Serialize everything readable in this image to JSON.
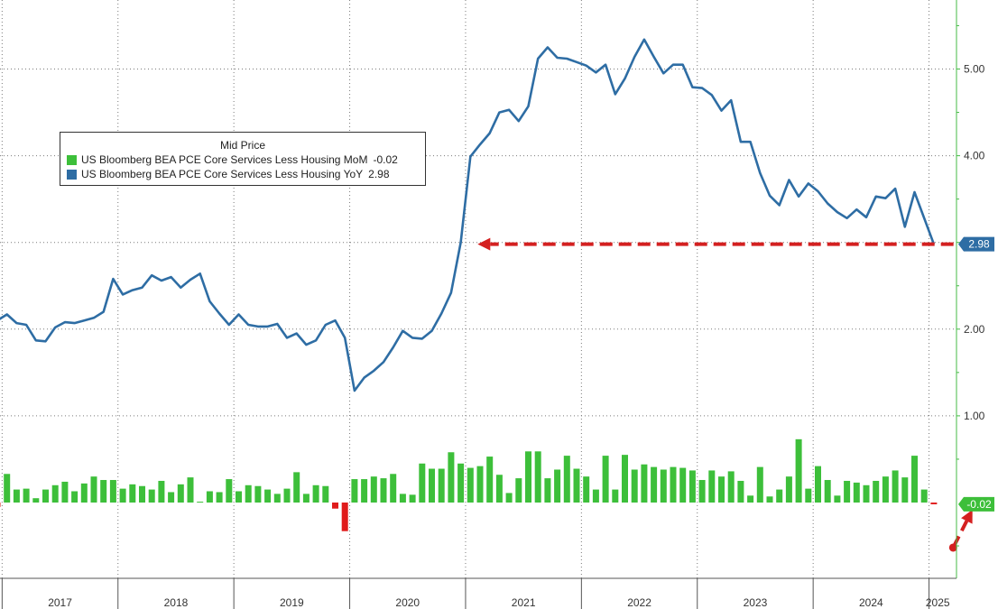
{
  "chart_data": {
    "type": "bar+line",
    "legend_title": "Mid Price",
    "x_tick_labels": [
      "2017",
      "2018",
      "2019",
      "2020",
      "2021",
      "2022",
      "2023",
      "2024",
      "2025"
    ],
    "y_tick_labels": [
      "1.00",
      "2.00",
      "3.00",
      "4.00",
      "5.00"
    ],
    "ylim": [
      -0.9,
      5.8
    ],
    "grid": true,
    "legend_position": "top-left",
    "colors": {
      "bars_positive": "#3dbf3a",
      "bars_negative": "#e01b1b",
      "line": "#2e6da4",
      "axis": "#44bb44",
      "annotation": "#d42020"
    },
    "series": [
      {
        "name": "US Bloomberg BEA PCE Core Services Less Housing YoY",
        "kind": "line",
        "last_value": "2.98",
        "start": "2016-12",
        "values": [
          2.1,
          2.17,
          2.07,
          2.05,
          1.87,
          1.86,
          2.02,
          2.08,
          2.07,
          2.1,
          2.13,
          2.2,
          2.58,
          2.4,
          2.45,
          2.48,
          2.62,
          2.56,
          2.6,
          2.48,
          2.57,
          2.64,
          2.32,
          2.18,
          2.05,
          2.17,
          2.05,
          2.03,
          2.03,
          2.06,
          1.9,
          1.95,
          1.82,
          1.87,
          2.05,
          2.1,
          1.9,
          1.29,
          1.44,
          1.52,
          1.62,
          1.79,
          1.98,
          1.9,
          1.89,
          1.98,
          2.18,
          2.42,
          3.0,
          3.99,
          4.13,
          4.26,
          4.5,
          4.53,
          4.4,
          4.57,
          5.12,
          5.25,
          5.13,
          5.12,
          5.08,
          5.04,
          4.96,
          5.05,
          4.71,
          4.89,
          5.14,
          5.34,
          5.14,
          4.95,
          5.05,
          5.05,
          4.79,
          4.78,
          4.7,
          4.52,
          4.64,
          4.16,
          4.16,
          3.8,
          3.54,
          3.43,
          3.72,
          3.53,
          3.68,
          3.59,
          3.45,
          3.35,
          3.28,
          3.38,
          3.29,
          3.53,
          3.51,
          3.62,
          3.18,
          3.58,
          3.28,
          2.98
        ]
      },
      {
        "name": "US Bloomberg BEA PCE Core Services Less Housing MoM",
        "kind": "bar",
        "last_value": "-0.02",
        "start": "2016-12",
        "values": [
          -0.05,
          0.33,
          0.15,
          0.16,
          0.05,
          0.15,
          0.2,
          0.24,
          0.13,
          0.22,
          0.3,
          0.26,
          0.26,
          0.16,
          0.21,
          0.19,
          0.15,
          0.25,
          0.12,
          0.21,
          0.29,
          0.01,
          0.13,
          0.12,
          0.27,
          0.13,
          0.2,
          0.19,
          0.15,
          0.1,
          0.16,
          0.35,
          0.1,
          0.2,
          0.19,
          -0.07,
          -0.33,
          0.27,
          0.27,
          0.3,
          0.28,
          0.33,
          0.1,
          0.09,
          0.45,
          0.39,
          0.39,
          0.58,
          0.45,
          0.4,
          0.42,
          0.53,
          0.32,
          0.11,
          0.28,
          0.59,
          0.59,
          0.28,
          0.38,
          0.54,
          0.39,
          0.3,
          0.15,
          0.54,
          0.15,
          0.55,
          0.38,
          0.44,
          0.41,
          0.38,
          0.41,
          0.4,
          0.37,
          0.26,
          0.37,
          0.3,
          0.36,
          0.25,
          0.08,
          0.41,
          0.07,
          0.15,
          0.3,
          0.73,
          0.16,
          0.42,
          0.26,
          0.08,
          0.25,
          0.23,
          0.2,
          0.25,
          0.3,
          0.37,
          0.29,
          0.54,
          0.15,
          -0.02
        ]
      }
    ],
    "annotations": [
      {
        "type": "dashed-arrow",
        "from_value": 2.98,
        "to_value": 2.98,
        "from_date": "2025-05",
        "to_date": "2021-01"
      },
      {
        "type": "dashed-arrow",
        "from_value": -0.52,
        "to_value": -0.02,
        "from_date": "2025-03",
        "to_date": "2025-05"
      }
    ]
  }
}
